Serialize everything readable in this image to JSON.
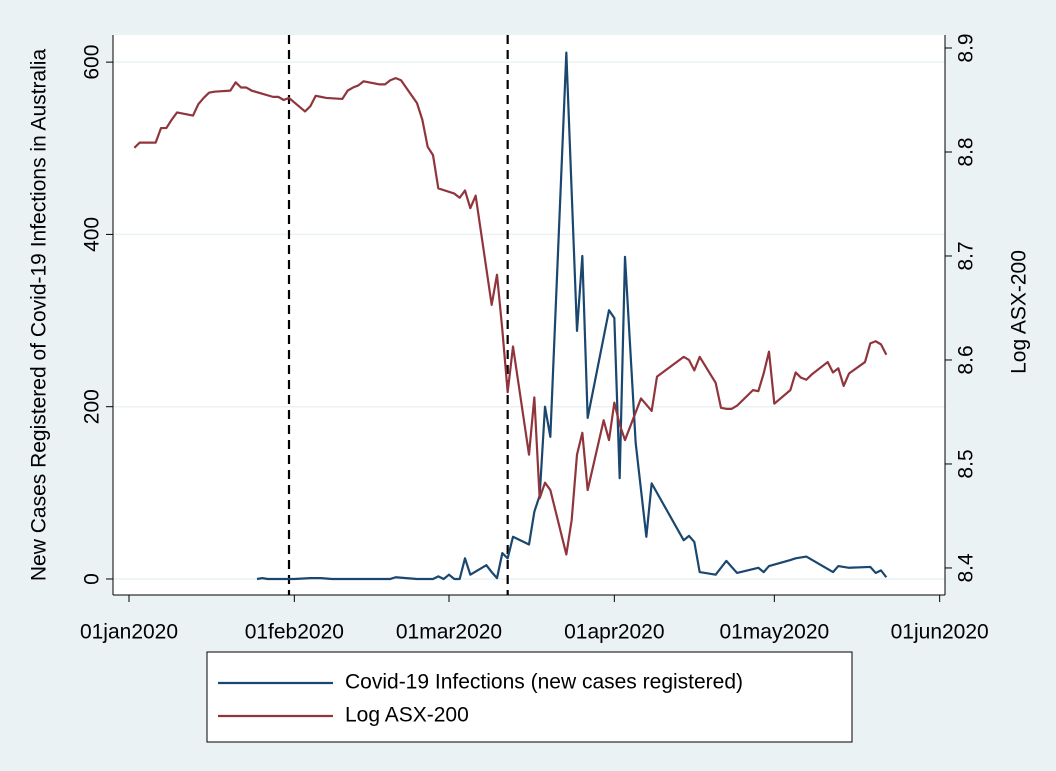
{
  "chart_data": {
    "type": "line",
    "ylabel": "New Cases Registered of Covid-19 Infections in Australia",
    "y2label": "Log ASX-200",
    "xlim": [
      "2019-12-29",
      "2020-06-02"
    ],
    "xticks": [
      {
        "value": "2020-01-01",
        "label": "01jan2020"
      },
      {
        "value": "2020-02-01",
        "label": "01feb2020"
      },
      {
        "value": "2020-03-01",
        "label": "01mar2020"
      },
      {
        "value": "2020-04-01",
        "label": "01apr2020"
      },
      {
        "value": "2020-05-01",
        "label": "01may2020"
      },
      {
        "value": "2020-06-01",
        "label": "01jun2020"
      }
    ],
    "ylim": [
      -18.6,
      631.5
    ],
    "yticks": [
      0,
      200,
      400,
      600
    ],
    "y2lim": [
      8.374,
      8.9125
    ],
    "y2ticks": [
      8.4,
      8.5,
      8.6,
      8.7,
      8.8,
      8.9
    ],
    "grid": true,
    "xlines": [
      "2020-01-31",
      "2020-03-12"
    ],
    "legend": "bottom",
    "series": [
      {
        "name": "Covid-19 Infections (new cases registered)",
        "color": "#1a476f",
        "x": [
          "2020-01-25",
          "2020-01-26",
          "2020-01-27",
          "2020-01-31",
          "2020-02-01",
          "2020-02-04",
          "2020-02-06",
          "2020-02-08",
          "2020-02-15",
          "2020-02-19",
          "2020-02-20",
          "2020-02-22",
          "2020-02-24",
          "2020-02-27",
          "2020-02-28",
          "2020-02-29",
          "2020-03-01",
          "2020-03-02",
          "2020-03-03",
          "2020-03-04",
          "2020-03-05",
          "2020-03-08",
          "2020-03-09",
          "2020-03-10",
          "2020-03-11",
          "2020-03-12",
          "2020-03-13",
          "2020-03-16",
          "2020-03-17",
          "2020-03-18",
          "2020-03-19",
          "2020-03-20",
          "2020-03-23",
          "2020-03-25",
          "2020-03-26",
          "2020-03-27",
          "2020-03-31",
          "2020-04-01",
          "2020-04-02",
          "2020-04-03",
          "2020-04-05",
          "2020-04-07",
          "2020-04-08",
          "2020-04-14",
          "2020-04-15",
          "2020-04-16",
          "2020-04-17",
          "2020-04-20",
          "2020-04-22",
          "2020-04-24",
          "2020-04-28",
          "2020-04-29",
          "2020-04-30",
          "2020-05-04",
          "2020-05-05",
          "2020-05-07",
          "2020-05-12",
          "2020-05-13",
          "2020-05-14",
          "2020-05-15",
          "2020-05-19",
          "2020-05-20",
          "2020-05-21",
          "2020-05-22"
        ],
        "values": [
          0,
          1,
          0,
          0,
          0,
          1,
          1,
          0,
          0,
          0,
          2,
          1,
          0,
          0,
          3,
          0,
          5,
          0,
          0,
          24,
          5,
          16,
          8,
          1,
          30,
          24,
          49,
          40,
          78,
          97,
          200,
          165,
          611,
          288,
          375,
          187,
          312,
          303,
          117,
          374,
          158,
          49,
          111,
          45,
          50,
          43,
          8,
          5,
          21,
          7,
          13,
          8,
          15,
          22,
          24,
          26,
          8,
          15,
          14,
          13,
          14,
          7,
          10,
          2
        ]
      },
      {
        "name": "Log ASX-200",
        "color": "#90353b",
        "axis": "y2",
        "x": [
          "2020-01-02",
          "2020-01-03",
          "2020-01-06",
          "2020-01-07",
          "2020-01-08",
          "2020-01-09",
          "2020-01-10",
          "2020-01-13",
          "2020-01-14",
          "2020-01-15",
          "2020-01-16",
          "2020-01-17",
          "2020-01-20",
          "2020-01-21",
          "2020-01-22",
          "2020-01-23",
          "2020-01-24",
          "2020-01-28",
          "2020-01-29",
          "2020-01-30",
          "2020-01-31",
          "2020-02-03",
          "2020-02-04",
          "2020-02-05",
          "2020-02-06",
          "2020-02-07",
          "2020-02-10",
          "2020-02-11",
          "2020-02-12",
          "2020-02-13",
          "2020-02-14",
          "2020-02-17",
          "2020-02-18",
          "2020-02-19",
          "2020-02-20",
          "2020-02-21",
          "2020-02-24",
          "2020-02-25",
          "2020-02-26",
          "2020-02-27",
          "2020-02-28",
          "2020-03-02",
          "2020-03-03",
          "2020-03-04",
          "2020-03-05",
          "2020-03-06",
          "2020-03-09",
          "2020-03-10",
          "2020-03-11",
          "2020-03-12",
          "2020-03-13",
          "2020-03-16",
          "2020-03-17",
          "2020-03-18",
          "2020-03-19",
          "2020-03-20",
          "2020-03-23",
          "2020-03-24",
          "2020-03-25",
          "2020-03-26",
          "2020-03-27",
          "2020-03-30",
          "2020-03-31",
          "2020-04-01",
          "2020-04-02",
          "2020-04-03",
          "2020-04-06",
          "2020-04-07",
          "2020-04-08",
          "2020-04-09",
          "2020-04-14",
          "2020-04-15",
          "2020-04-16",
          "2020-04-17",
          "2020-04-20",
          "2020-04-21",
          "2020-04-22",
          "2020-04-23",
          "2020-04-24",
          "2020-04-27",
          "2020-04-28",
          "2020-04-29",
          "2020-04-30",
          "2020-05-01",
          "2020-05-04",
          "2020-05-05",
          "2020-05-06",
          "2020-05-07",
          "2020-05-08",
          "2020-05-11",
          "2020-05-12",
          "2020-05-13",
          "2020-05-14",
          "2020-05-15",
          "2020-05-18",
          "2020-05-19",
          "2020-05-20",
          "2020-05-21",
          "2020-05-22"
        ],
        "values": [
          8.804,
          8.809,
          8.809,
          8.823,
          8.823,
          8.831,
          8.838,
          8.835,
          8.846,
          8.852,
          8.857,
          8.858,
          8.859,
          8.867,
          8.862,
          8.862,
          8.859,
          8.853,
          8.853,
          8.85,
          8.852,
          8.839,
          8.844,
          8.854,
          8.853,
          8.852,
          8.851,
          8.859,
          8.862,
          8.864,
          8.868,
          8.865,
          8.865,
          8.869,
          8.871,
          8.869,
          8.847,
          8.831,
          8.805,
          8.797,
          8.765,
          8.76,
          8.756,
          8.763,
          8.746,
          8.758,
          8.653,
          8.682,
          8.629,
          8.569,
          8.613,
          8.509,
          8.564,
          8.467,
          8.482,
          8.475,
          8.413,
          8.446,
          8.509,
          8.53,
          8.475,
          8.542,
          8.523,
          8.559,
          8.538,
          8.523,
          8.563,
          8.557,
          8.551,
          8.584,
          8.603,
          8.6,
          8.59,
          8.603,
          8.578,
          8.554,
          8.553,
          8.553,
          8.556,
          8.571,
          8.57,
          8.587,
          8.608,
          8.558,
          8.571,
          8.588,
          8.583,
          8.581,
          8.586,
          8.598,
          8.588,
          8.592,
          8.575,
          8.587,
          8.598,
          8.616,
          8.618,
          8.615,
          8.605
        ]
      }
    ]
  }
}
